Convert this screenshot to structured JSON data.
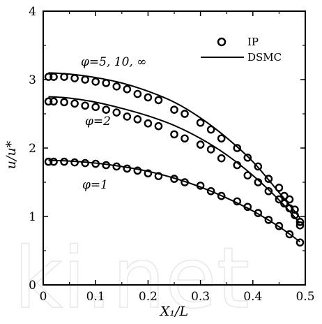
{
  "chart_data": {
    "type": "line",
    "title": "",
    "xlabel": "X₁/L",
    "ylabel": "u/u*",
    "xlim": [
      0,
      0.5
    ],
    "ylim": [
      0,
      4
    ],
    "x_ticks": [
      "0",
      "0.1",
      "0.2",
      "0.3",
      "0.4",
      "0.5"
    ],
    "y_ticks": [
      "0",
      "1",
      "2",
      "3",
      "4"
    ],
    "grid": false,
    "legend": {
      "placement": "top-right",
      "entries": [
        {
          "label": "IP",
          "marker": "circle"
        },
        {
          "label": "DSMC",
          "marker": "line"
        }
      ]
    },
    "annotations": [
      "φ=5, 10, ∞",
      "φ=2",
      "φ=1"
    ],
    "series": [
      {
        "name": "DSMC",
        "style": "line",
        "curves": [
          {
            "x": [
              0.01,
              0.05,
              0.1,
              0.15,
              0.2,
              0.25,
              0.3,
              0.35,
              0.4,
              0.45,
              0.49
            ],
            "y": [
              3.1,
              3.08,
              3.03,
              2.95,
              2.83,
              2.67,
              2.44,
              2.15,
              1.8,
              1.35,
              0.98
            ]
          },
          {
            "x": [
              0.01,
              0.05,
              0.1,
              0.15,
              0.2,
              0.25,
              0.3,
              0.35,
              0.4,
              0.45,
              0.49
            ],
            "y": [
              2.75,
              2.73,
              2.67,
              2.58,
              2.47,
              2.33,
              2.14,
              1.9,
              1.6,
              1.24,
              0.9
            ]
          },
          {
            "x": [
              0.01,
              0.05,
              0.1,
              0.15,
              0.2,
              0.25,
              0.3,
              0.35,
              0.4,
              0.45,
              0.49
            ],
            "y": [
              1.82,
              1.81,
              1.78,
              1.73,
              1.66,
              1.56,
              1.43,
              1.27,
              1.08,
              0.85,
              0.63
            ]
          }
        ]
      },
      {
        "name": "IP",
        "style": "scatter",
        "curves": [
          {
            "x": [
              0.01,
              0.02,
              0.04,
              0.06,
              0.08,
              0.1,
              0.12,
              0.14,
              0.16,
              0.18,
              0.2,
              0.22,
              0.25,
              0.27,
              0.3,
              0.32,
              0.34,
              0.37,
              0.39,
              0.41,
              0.43,
              0.45,
              0.46,
              0.47,
              0.48,
              0.49
            ],
            "y": [
              3.04,
              3.04,
              3.04,
              3.02,
              3.0,
              2.97,
              2.95,
              2.9,
              2.86,
              2.79,
              2.74,
              2.7,
              2.56,
              2.5,
              2.37,
              2.27,
              2.14,
              2.0,
              1.86,
              1.73,
              1.55,
              1.42,
              1.3,
              1.25,
              1.1,
              0.92
            ]
          },
          {
            "x": [
              0.01,
              0.02,
              0.04,
              0.06,
              0.08,
              0.1,
              0.12,
              0.14,
              0.16,
              0.18,
              0.2,
              0.22,
              0.25,
              0.27,
              0.3,
              0.32,
              0.34,
              0.37,
              0.39,
              0.41,
              0.43,
              0.45,
              0.46,
              0.47,
              0.48,
              0.49
            ],
            "y": [
              2.68,
              2.68,
              2.67,
              2.65,
              2.62,
              2.6,
              2.56,
              2.52,
              2.46,
              2.42,
              2.36,
              2.32,
              2.2,
              2.14,
              2.05,
              1.98,
              1.85,
              1.75,
              1.6,
              1.5,
              1.37,
              1.25,
              1.19,
              1.12,
              1.02,
              0.87
            ]
          },
          {
            "x": [
              0.01,
              0.02,
              0.04,
              0.06,
              0.08,
              0.1,
              0.12,
              0.14,
              0.16,
              0.18,
              0.2,
              0.22,
              0.25,
              0.27,
              0.3,
              0.32,
              0.34,
              0.37,
              0.39,
              0.41,
              0.43,
              0.45,
              0.47,
              0.49
            ],
            "y": [
              1.8,
              1.8,
              1.8,
              1.79,
              1.78,
              1.77,
              1.75,
              1.73,
              1.7,
              1.67,
              1.63,
              1.59,
              1.55,
              1.5,
              1.45,
              1.37,
              1.3,
              1.22,
              1.14,
              1.05,
              0.95,
              0.86,
              0.74,
              0.62
            ]
          }
        ]
      }
    ]
  }
}
